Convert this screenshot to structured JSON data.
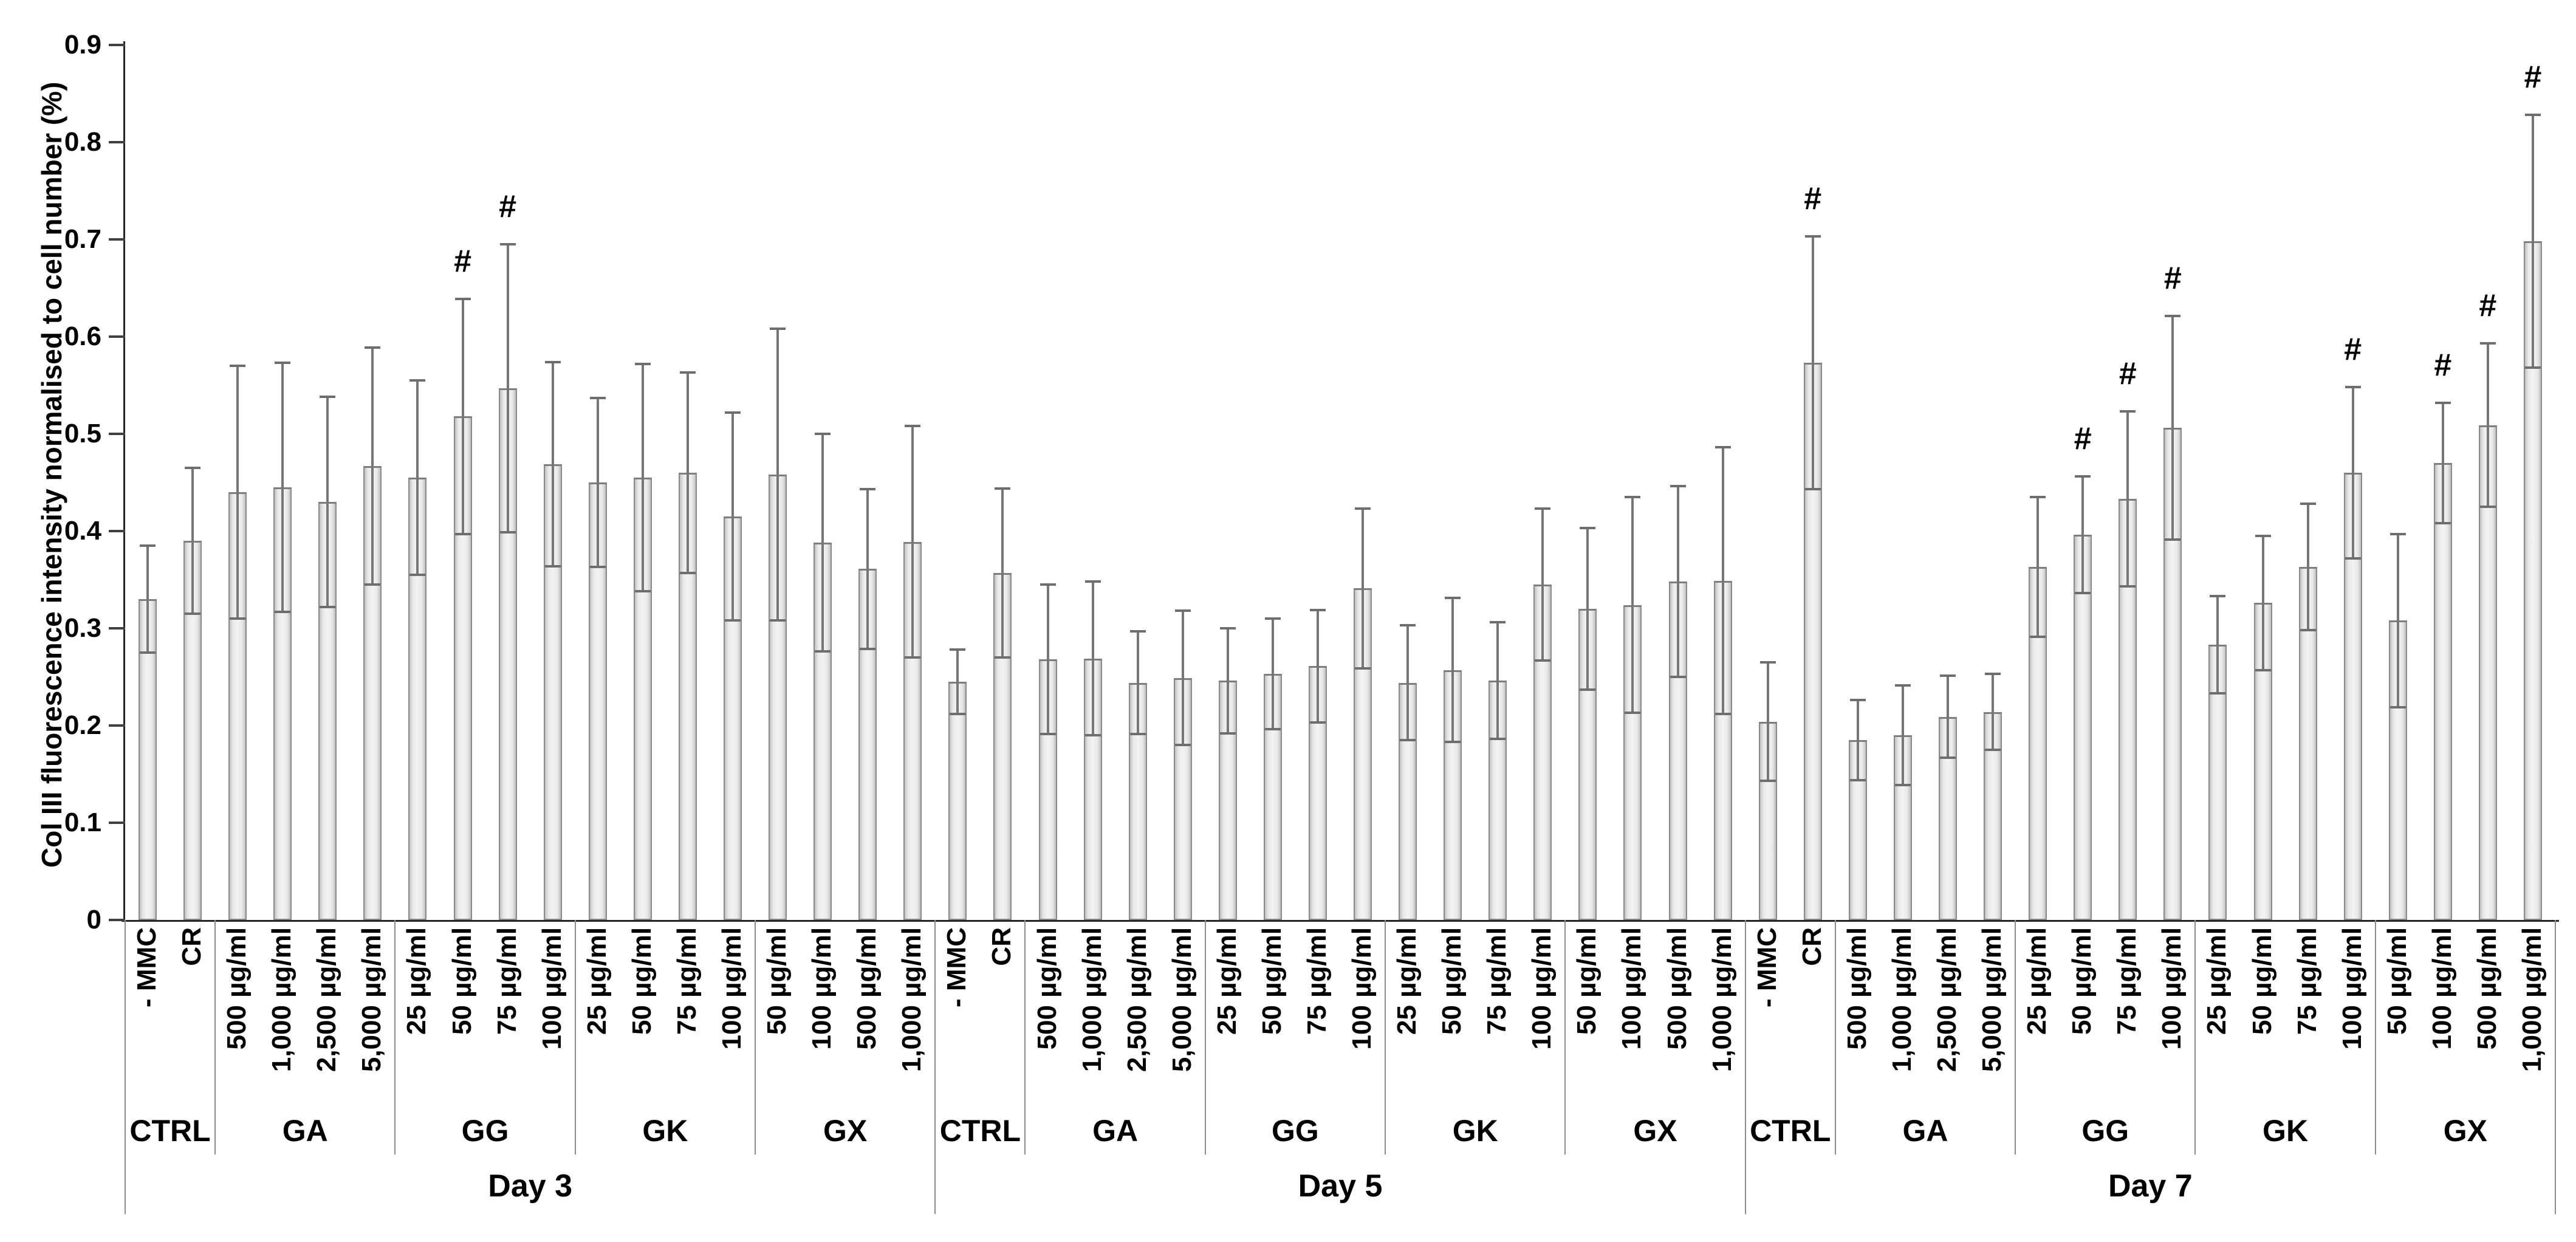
{
  "sig_marker": "#",
  "y_axis": {
    "title": "Col III fluorescence intensity normalised to cell number (%)",
    "ticks": [
      "0",
      "0.1",
      "0.2",
      "0.3",
      "0.4",
      "0.5",
      "0.6",
      "0.7",
      "0.8",
      "0.9"
    ]
  },
  "chart_data": {
    "type": "bar",
    "title": "",
    "xlabel": "",
    "ylabel": "Col III fluorescence intensity normalised to cell number (%)",
    "ylim": [
      0,
      0.9
    ],
    "grid": false,
    "legend": "none",
    "error_bars": "symmetric, gray, capped",
    "significance_note": "# printed above bars that differ significantly",
    "days": [
      {
        "label": "Day 3",
        "groups": [
          {
            "name": "CTRL",
            "bars": [
              {
                "label": "- MMC",
                "value": 0.33,
                "err": 0.055,
                "sig": false
              },
              {
                "label": "CR",
                "value": 0.39,
                "err": 0.075,
                "sig": false
              }
            ]
          },
          {
            "name": "GA",
            "bars": [
              {
                "label": "500 µg/ml",
                "value": 0.44,
                "err": 0.13,
                "sig": false
              },
              {
                "label": "1,000 µg/ml",
                "value": 0.445,
                "err": 0.128,
                "sig": false
              },
              {
                "label": "2,500 µg/ml",
                "value": 0.43,
                "err": 0.108,
                "sig": false
              },
              {
                "label": "5,000 µg/ml",
                "value": 0.467,
                "err": 0.122,
                "sig": false
              }
            ]
          },
          {
            "name": "GG",
            "bars": [
              {
                "label": "25 µg/ml",
                "value": 0.455,
                "err": 0.1,
                "sig": false
              },
              {
                "label": "50 µg/ml",
                "value": 0.518,
                "err": 0.121,
                "sig": true
              },
              {
                "label": "75 µg/ml",
                "value": 0.547,
                "err": 0.148,
                "sig": true
              },
              {
                "label": "100 µg/ml",
                "value": 0.469,
                "err": 0.105,
                "sig": false
              }
            ]
          },
          {
            "name": "GK",
            "bars": [
              {
                "label": "25 µg/ml",
                "value": 0.45,
                "err": 0.087,
                "sig": false
              },
              {
                "label": "50 µg/ml",
                "value": 0.455,
                "err": 0.117,
                "sig": false
              },
              {
                "label": "75 µg/ml",
                "value": 0.46,
                "err": 0.103,
                "sig": false
              },
              {
                "label": "100 µg/ml",
                "value": 0.415,
                "err": 0.107,
                "sig": false
              }
            ]
          },
          {
            "name": "GX",
            "bars": [
              {
                "label": "50 µg/ml",
                "value": 0.458,
                "err": 0.15,
                "sig": false
              },
              {
                "label": "100 µg/ml",
                "value": 0.388,
                "err": 0.112,
                "sig": false
              },
              {
                "label": "500 µg/ml",
                "value": 0.361,
                "err": 0.082,
                "sig": false
              },
              {
                "label": "1,000 µg/ml",
                "value": 0.389,
                "err": 0.119,
                "sig": false
              }
            ]
          }
        ]
      },
      {
        "label": "Day 5",
        "groups": [
          {
            "name": "CTRL",
            "bars": [
              {
                "label": "- MMC",
                "value": 0.245,
                "err": 0.033,
                "sig": false
              },
              {
                "label": "CR",
                "value": 0.357,
                "err": 0.087,
                "sig": false
              }
            ]
          },
          {
            "name": "GA",
            "bars": [
              {
                "label": "500 µg/ml",
                "value": 0.268,
                "err": 0.077,
                "sig": false
              },
              {
                "label": "1,000 µg/ml",
                "value": 0.269,
                "err": 0.079,
                "sig": false
              },
              {
                "label": "2,500 µg/ml",
                "value": 0.244,
                "err": 0.053,
                "sig": false
              },
              {
                "label": "5,000 µg/ml",
                "value": 0.249,
                "err": 0.069,
                "sig": false
              }
            ]
          },
          {
            "name": "GG",
            "bars": [
              {
                "label": "25 µg/ml",
                "value": 0.246,
                "err": 0.054,
                "sig": false
              },
              {
                "label": "50 µg/ml",
                "value": 0.253,
                "err": 0.057,
                "sig": false
              },
              {
                "label": "75 µg/ml",
                "value": 0.261,
                "err": 0.058,
                "sig": false
              },
              {
                "label": "100 µg/ml",
                "value": 0.341,
                "err": 0.082,
                "sig": false
              }
            ]
          },
          {
            "name": "GK",
            "bars": [
              {
                "label": "25 µg/ml",
                "value": 0.244,
                "err": 0.059,
                "sig": false
              },
              {
                "label": "50 µg/ml",
                "value": 0.257,
                "err": 0.074,
                "sig": false
              },
              {
                "label": "75 µg/ml",
                "value": 0.246,
                "err": 0.06,
                "sig": false
              },
              {
                "label": "100 µg/ml",
                "value": 0.345,
                "err": 0.078,
                "sig": false
              }
            ]
          },
          {
            "name": "GX",
            "bars": [
              {
                "label": "50 µg/ml",
                "value": 0.32,
                "err": 0.083,
                "sig": false
              },
              {
                "label": "100 µg/ml",
                "value": 0.324,
                "err": 0.111,
                "sig": false
              },
              {
                "label": "500 µg/ml",
                "value": 0.348,
                "err": 0.098,
                "sig": false
              },
              {
                "label": "1,000 µg/ml",
                "value": 0.349,
                "err": 0.137,
                "sig": false
              }
            ]
          }
        ]
      },
      {
        "label": "Day 7",
        "groups": [
          {
            "name": "CTRL",
            "bars": [
              {
                "label": "- MMC",
                "value": 0.204,
                "err": 0.061,
                "sig": false
              },
              {
                "label": "CR",
                "value": 0.573,
                "err": 0.13,
                "sig": true
              }
            ]
          },
          {
            "name": "GA",
            "bars": [
              {
                "label": "500 µg/ml",
                "value": 0.185,
                "err": 0.041,
                "sig": false
              },
              {
                "label": "1,000 µg/ml",
                "value": 0.19,
                "err": 0.051,
                "sig": false
              },
              {
                "label": "2,500 µg/ml",
                "value": 0.209,
                "err": 0.042,
                "sig": false
              },
              {
                "label": "5,000 µg/ml",
                "value": 0.214,
                "err": 0.039,
                "sig": false
              }
            ]
          },
          {
            "name": "GG",
            "bars": [
              {
                "label": "25 µg/ml",
                "value": 0.363,
                "err": 0.072,
                "sig": false
              },
              {
                "label": "50 µg/ml",
                "value": 0.396,
                "err": 0.06,
                "sig": true
              },
              {
                "label": "75 µg/ml",
                "value": 0.433,
                "err": 0.09,
                "sig": true
              },
              {
                "label": "100 µg/ml",
                "value": 0.506,
                "err": 0.115,
                "sig": true
              }
            ]
          },
          {
            "name": "GK",
            "bars": [
              {
                "label": "25 µg/ml",
                "value": 0.283,
                "err": 0.05,
                "sig": false
              },
              {
                "label": "50 µg/ml",
                "value": 0.326,
                "err": 0.069,
                "sig": false
              },
              {
                "label": "75 µg/ml",
                "value": 0.363,
                "err": 0.065,
                "sig": false
              },
              {
                "label": "100 µg/ml",
                "value": 0.46,
                "err": 0.088,
                "sig": true
              }
            ]
          },
          {
            "name": "GX",
            "bars": [
              {
                "label": "50 µg/ml",
                "value": 0.308,
                "err": 0.089,
                "sig": false
              },
              {
                "label": "100 µg/ml",
                "value": 0.47,
                "err": 0.062,
                "sig": true
              },
              {
                "label": "500 µg/ml",
                "value": 0.509,
                "err": 0.084,
                "sig": true
              },
              {
                "label": "1,000 µg/ml",
                "value": 0.698,
                "err": 0.13,
                "sig": true
              }
            ]
          }
        ]
      }
    ]
  }
}
